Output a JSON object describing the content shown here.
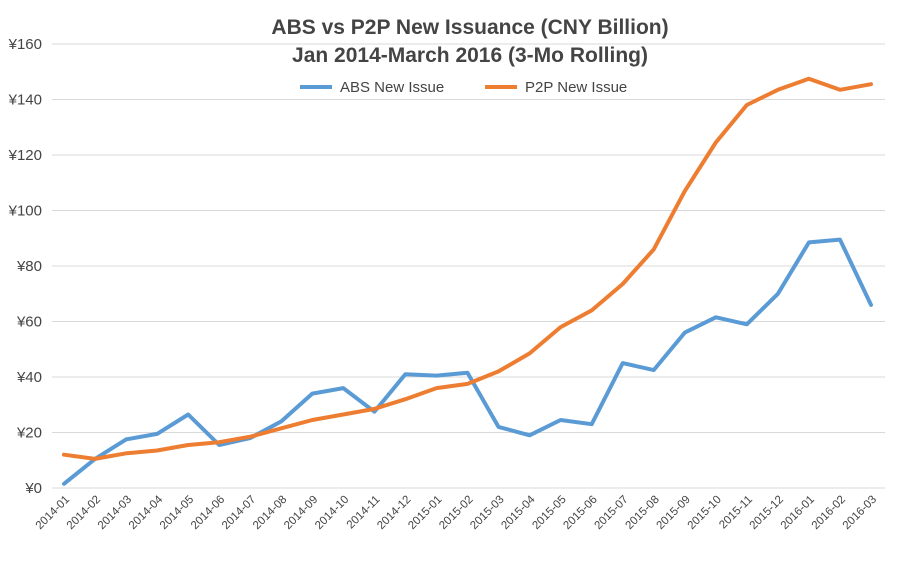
{
  "chart_data": {
    "type": "line",
    "title": "ABS vs P2P New Issuance (CNY Billion)",
    "subtitle": "Jan 2014-March 2016 (3-Mo Rolling)",
    "xlabel": "",
    "ylabel": "",
    "ylim": [
      0,
      160
    ],
    "yticks": [
      "¥0",
      "¥20",
      "¥40",
      "¥60",
      "¥80",
      "¥100",
      "¥120",
      "¥140",
      "¥160"
    ],
    "grid": true,
    "legend_position": "top-center",
    "categories": [
      "2014-01",
      "2014-02",
      "2014-03",
      "2014-04",
      "2014-05",
      "2014-06",
      "2014-07",
      "2014-08",
      "2014-09",
      "2014-10",
      "2014-11",
      "2014-12",
      "2015-01",
      "2015-02",
      "2015-03",
      "2015-04",
      "2015-05",
      "2015-06",
      "2015-07",
      "2015-08",
      "2015-09",
      "2015-10",
      "2015-11",
      "2015-12",
      "2016-01",
      "2016-02",
      "2016-03"
    ],
    "series": [
      {
        "name": "ABS New Issue",
        "color": "#5b9bd5",
        "values": [
          1.5,
          10.5,
          17.5,
          19.5,
          26.5,
          15.5,
          18,
          24,
          34,
          36,
          27.5,
          41,
          40.5,
          41.5,
          22,
          19,
          24.5,
          23,
          45,
          42.5,
          56,
          61.5,
          59,
          70,
          88.5,
          89.5,
          66
        ]
      },
      {
        "name": "P2P New Issue",
        "color": "#ed7d31",
        "values": [
          12,
          10.5,
          12.5,
          13.5,
          15.5,
          16.5,
          18.5,
          21.5,
          24.5,
          26.5,
          28.5,
          32,
          36,
          37.5,
          42,
          48.5,
          58,
          64,
          73.5,
          86,
          107,
          124.5,
          138,
          143.5,
          147.5,
          143.5,
          145.5
        ]
      }
    ]
  }
}
